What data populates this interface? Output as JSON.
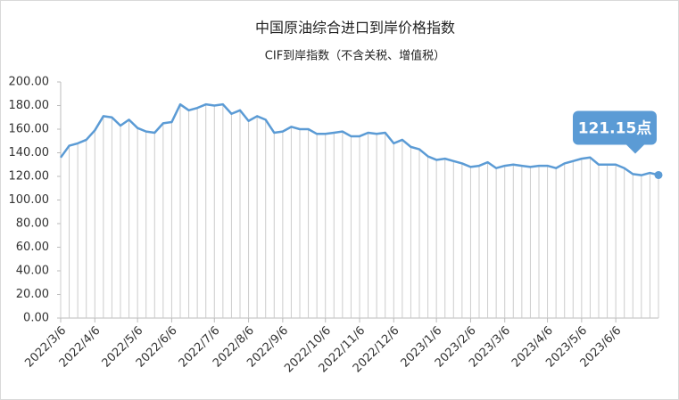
{
  "chart_data": {
    "type": "line",
    "title": "中国原油综合进口到岸价格指数",
    "subtitle": "CIF到岸指数（不含关税、增值税）",
    "categories": [
      "2022/3/6",
      null,
      null,
      null,
      "2022/4/6",
      null,
      null,
      null,
      null,
      "2022/5/6",
      null,
      null,
      null,
      "2022/6/6",
      null,
      null,
      null,
      null,
      "2022/7/6",
      null,
      null,
      null,
      "2022/8/6",
      null,
      null,
      null,
      "2022/9/6",
      null,
      null,
      null,
      null,
      "2022/10/6",
      null,
      null,
      null,
      "2022/11/6",
      null,
      null,
      null,
      "2022/12/6",
      null,
      null,
      null,
      null,
      "2023/1/6",
      null,
      null,
      null,
      "2023/2/6",
      null,
      null,
      null,
      "2023/3/6",
      null,
      null,
      null,
      null,
      "2023/4/6",
      null,
      null,
      null,
      "2023/5/6",
      null,
      null,
      null,
      "2023/6/6",
      null,
      null,
      null,
      null,
      null
    ],
    "values": [
      136,
      146,
      148,
      151,
      159,
      171,
      170,
      163,
      168,
      161,
      158,
      157,
      165,
      166,
      181,
      176,
      178,
      181,
      180,
      181,
      173,
      176,
      167,
      171,
      168,
      157,
      158,
      162,
      160,
      160,
      156,
      156,
      157,
      158,
      154,
      154,
      157,
      156,
      157,
      148,
      151,
      145,
      143,
      137,
      134,
      135,
      133,
      131,
      128,
      129,
      132,
      127,
      129,
      130,
      129,
      128,
      129,
      129,
      127,
      131,
      133,
      135,
      136,
      130,
      130,
      130,
      127,
      122,
      121,
      123,
      121.15
    ],
    "value_labels": [
      null,
      null,
      null,
      null,
      null,
      null,
      null,
      null,
      null,
      null,
      null,
      null,
      null,
      null,
      null,
      null,
      null,
      null,
      null,
      null,
      null,
      null,
      null,
      null,
      null,
      null,
      null,
      null,
      null,
      null,
      null,
      null,
      null,
      null,
      null,
      null,
      null,
      null,
      null,
      null,
      null,
      null,
      null,
      null,
      null,
      null,
      null,
      null,
      null,
      null,
      null,
      null,
      null,
      null,
      null,
      null,
      null,
      null,
      null,
      null,
      null,
      null,
      null,
      null,
      null,
      null,
      null,
      null,
      null,
      null,
      "121.15点"
    ],
    "color": "#5b9bd5",
    "ylim": [
      0,
      200
    ],
    "yticks": [
      {
        "value": 0,
        "label": "0.00"
      },
      {
        "value": 20,
        "label": "20.00"
      },
      {
        "value": 40,
        "label": "40.00"
      },
      {
        "value": 60,
        "label": "60.00"
      },
      {
        "value": 80,
        "label": "80.00"
      },
      {
        "value": 100,
        "label": "100.00"
      },
      {
        "value": 120,
        "label": "120.00"
      },
      {
        "value": 140,
        "label": "140.00"
      },
      {
        "value": 160,
        "label": "160.00"
      },
      {
        "value": 180,
        "label": "180.00"
      },
      {
        "value": 200,
        "label": "200.00"
      }
    ],
    "drop_lines": true
  }
}
